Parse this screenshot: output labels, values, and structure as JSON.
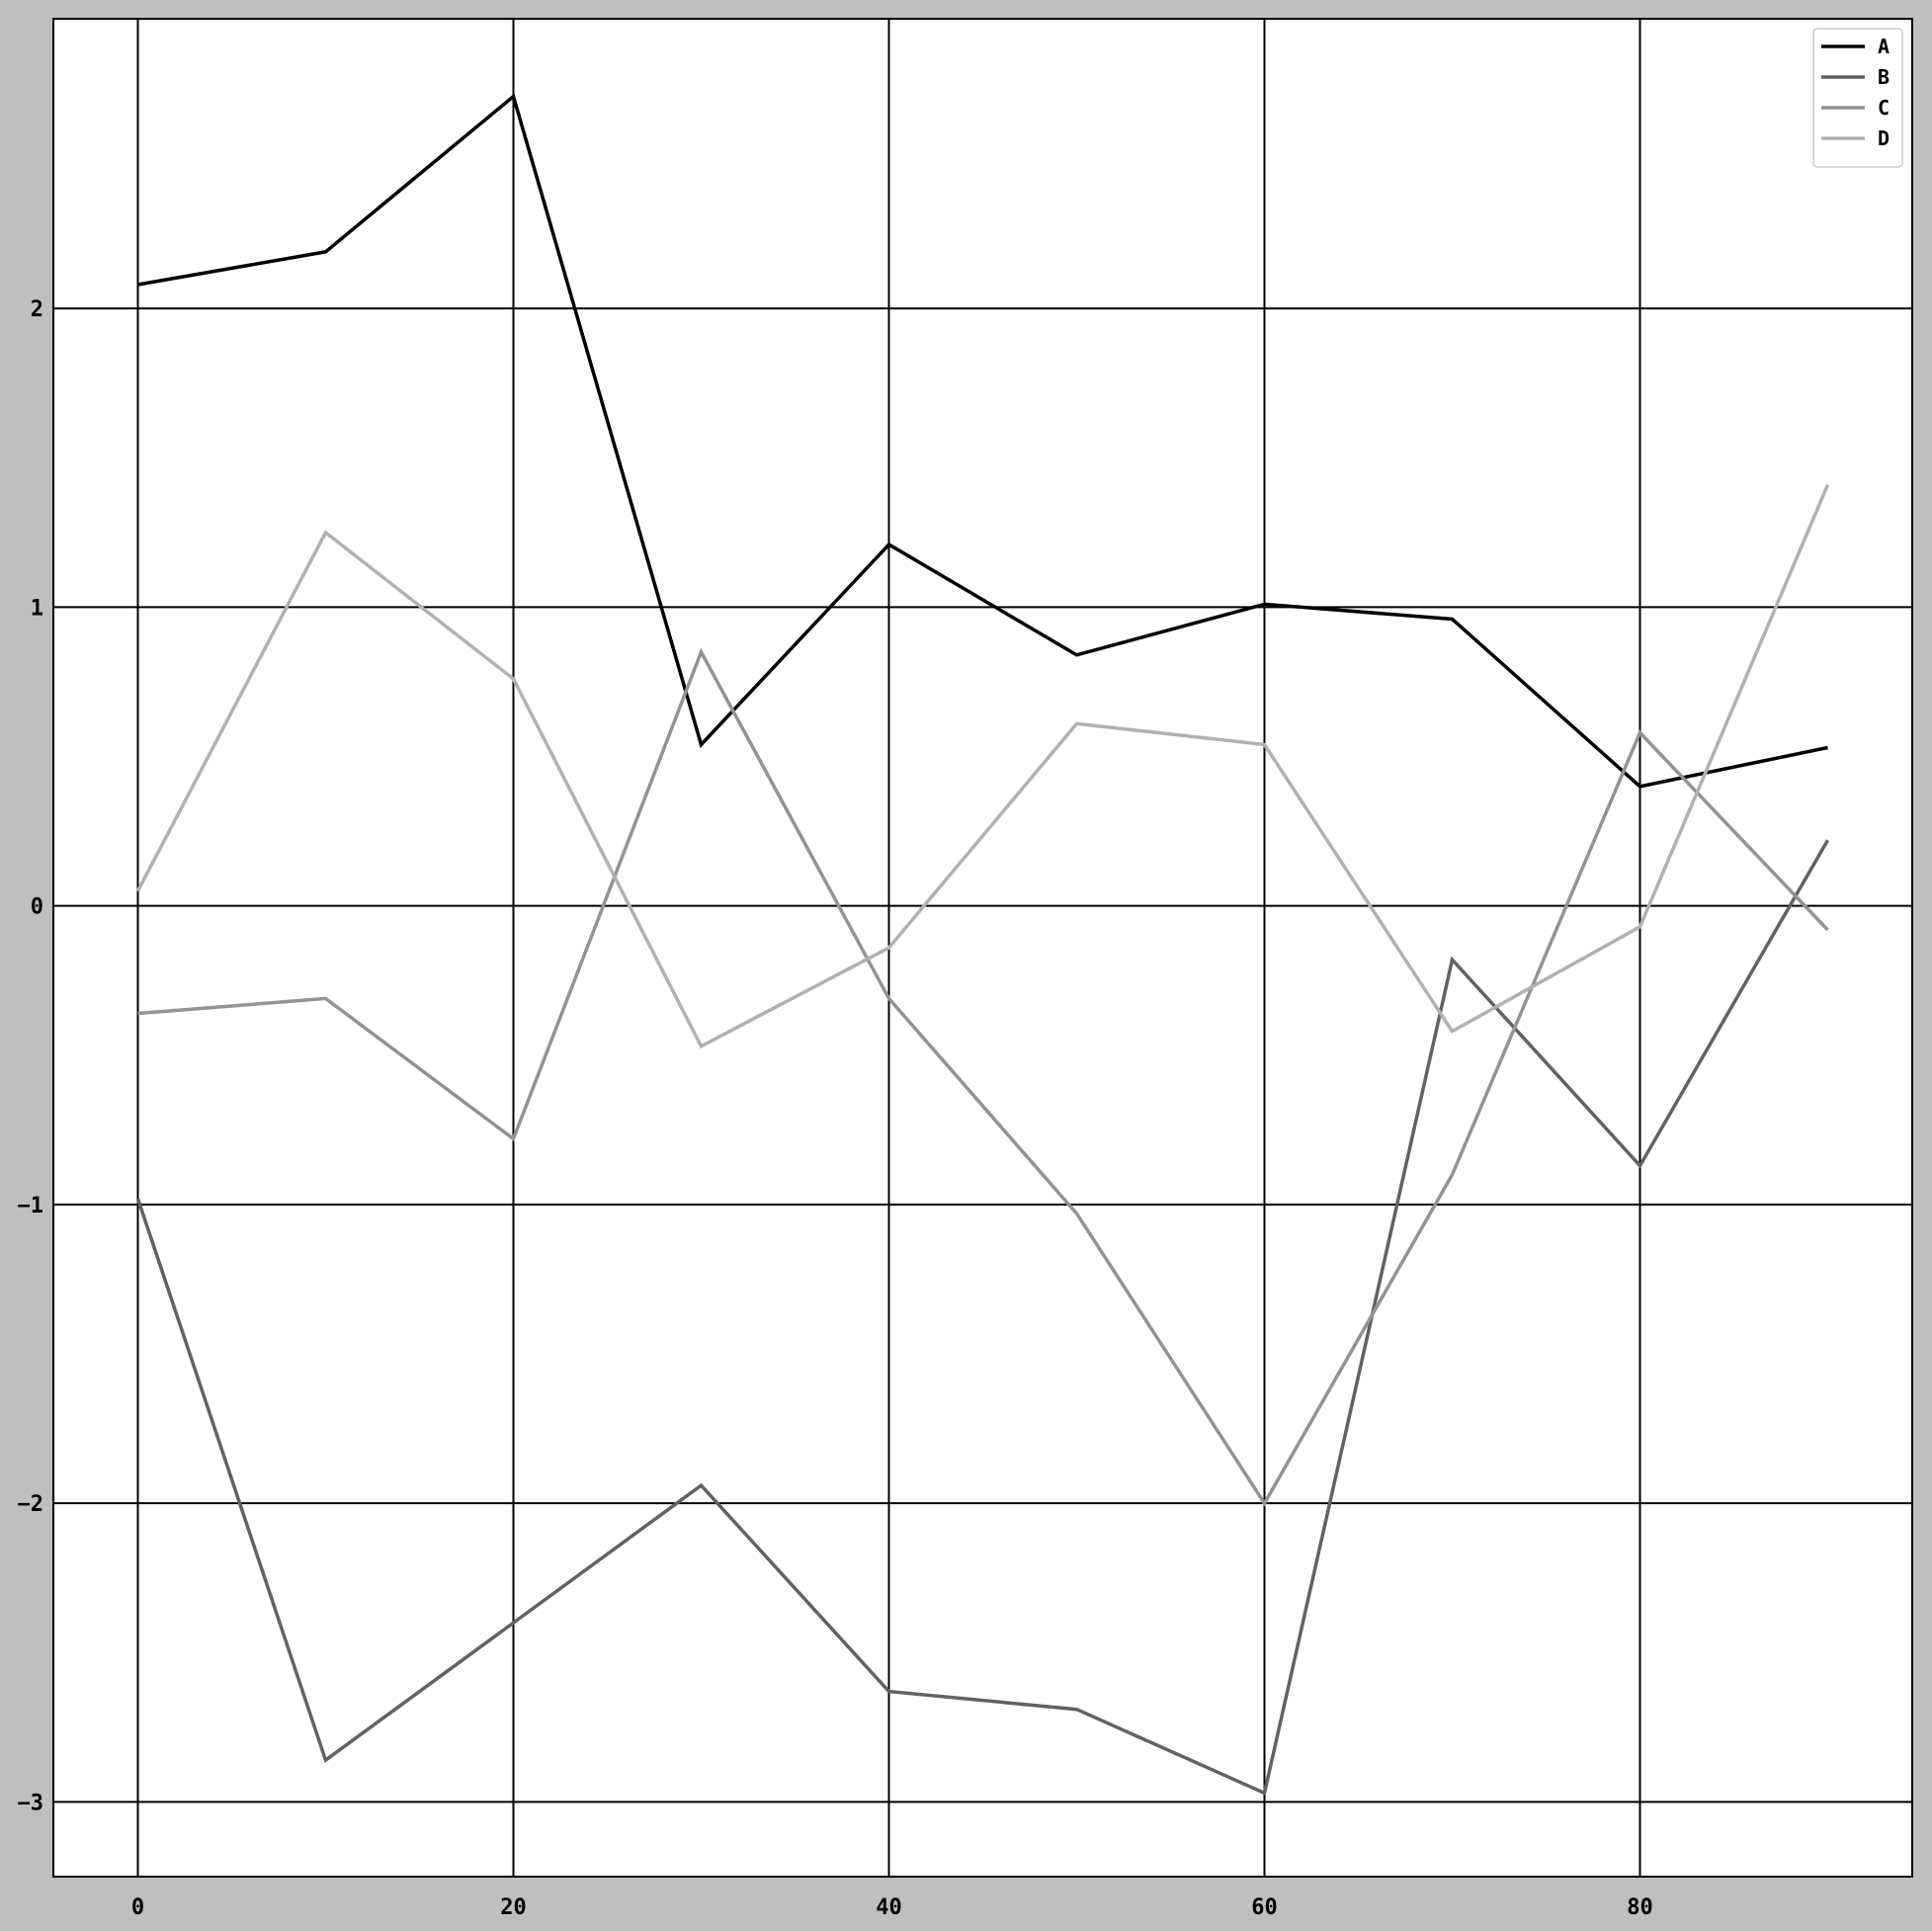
{
  "chart_data": {
    "type": "line",
    "title": "",
    "xlabel": "",
    "ylabel": "",
    "x": [
      0,
      10,
      20,
      30,
      40,
      50,
      60,
      70,
      80,
      90
    ],
    "xlim": [
      -4.5,
      94.5
    ],
    "ylim": [
      -3.25,
      2.97
    ],
    "xticks": [
      0,
      20,
      40,
      60,
      80
    ],
    "yticks": [
      2,
      1,
      0,
      -1,
      -2,
      -3
    ],
    "xtick_labels": [
      "0",
      "20",
      "40",
      "60",
      "80"
    ],
    "ytick_labels": [
      "2",
      "1",
      "0",
      "−1",
      "−2",
      "−3"
    ],
    "grid": true,
    "legend_position": "top-right",
    "background": "#ffffff",
    "figure_background": "#bfbfbf",
    "series": [
      {
        "name": "A",
        "color": "#000000",
        "values": [
          2.08,
          2.19,
          2.71,
          0.54,
          1.21,
          0.84,
          1.01,
          0.96,
          0.4,
          0.53
        ]
      },
      {
        "name": "B",
        "color": "#626262",
        "values": [
          -0.98,
          -2.86,
          -2.4,
          -1.94,
          -2.63,
          -2.69,
          -2.97,
          -0.18,
          -0.87,
          0.22
        ]
      },
      {
        "name": "C",
        "color": "#939393",
        "values": [
          -0.36,
          -0.31,
          -0.78,
          0.85,
          -0.31,
          -1.03,
          -2.0,
          -0.9,
          0.58,
          -0.08
        ]
      },
      {
        "name": "D",
        "color": "#b1b1b1",
        "values": [
          0.05,
          1.25,
          0.76,
          -0.47,
          -0.14,
          0.61,
          0.54,
          -0.42,
          -0.07,
          1.41
        ]
      }
    ]
  }
}
